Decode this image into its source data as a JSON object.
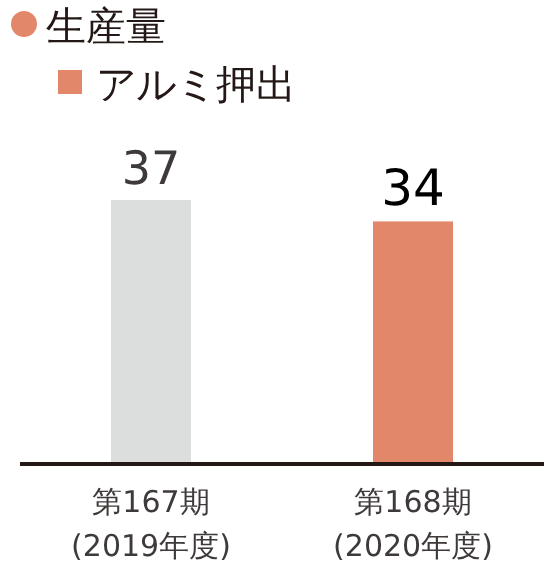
{
  "chart_data": {
    "type": "bar",
    "title": "生産量",
    "categories": [
      "第167期\n(2019年度)",
      "第168期\n(2020年度)"
    ],
    "series": [
      {
        "name": "アルミ押出",
        "color": "#e3876b",
        "colors": [
          "#dcdddd",
          "#e3876b"
        ],
        "values": [
          37,
          34
        ]
      }
    ],
    "data_labels": true,
    "legend": "top left"
  }
}
